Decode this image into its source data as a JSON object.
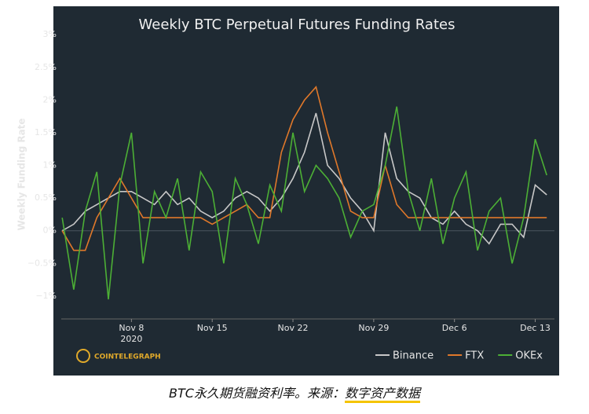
{
  "chart_data": {
    "type": "line",
    "title": "Weekly BTC Perpetual Futures Funding Rates",
    "y_label": "Weekly Funding Rate",
    "watermark": "COINTELEGRAPH",
    "x": [
      "2020-11-02",
      "2020-11-03",
      "2020-11-04",
      "2020-11-05",
      "2020-11-06",
      "2020-11-07",
      "2020-11-08",
      "2020-11-09",
      "2020-11-10",
      "2020-11-11",
      "2020-11-12",
      "2020-11-13",
      "2020-11-14",
      "2020-11-15",
      "2020-11-16",
      "2020-11-17",
      "2020-11-18",
      "2020-11-19",
      "2020-11-20",
      "2020-11-21",
      "2020-11-22",
      "2020-11-23",
      "2020-11-24",
      "2020-11-25",
      "2020-11-26",
      "2020-11-27",
      "2020-11-28",
      "2020-11-29",
      "2020-11-30",
      "2020-12-01",
      "2020-12-02",
      "2020-12-03",
      "2020-12-04",
      "2020-12-05",
      "2020-12-06",
      "2020-12-07",
      "2020-12-08",
      "2020-12-09",
      "2020-12-10",
      "2020-12-11",
      "2020-12-12",
      "2020-12-13",
      "2020-12-14"
    ],
    "series": [
      {
        "name": "Binance",
        "color": "#c8c8c8",
        "values": [
          0,
          0.1,
          0.3,
          0.4,
          0.5,
          0.6,
          0.6,
          0.5,
          0.4,
          0.6,
          0.4,
          0.5,
          0.3,
          0.2,
          0.3,
          0.5,
          0.6,
          0.5,
          0.3,
          0.5,
          0.8,
          1.2,
          1.8,
          1.0,
          0.8,
          0.5,
          0.3,
          0.0,
          1.5,
          0.8,
          0.6,
          0.5,
          0.2,
          0.1,
          0.3,
          0.1,
          0.0,
          -0.2,
          0.1,
          0.1,
          -0.1,
          0.7,
          0.55
        ]
      },
      {
        "name": "FTX",
        "color": "#e0782a",
        "values": [
          0,
          -0.3,
          -0.3,
          0.2,
          0.5,
          0.8,
          0.5,
          0.2,
          0.2,
          0.2,
          0.2,
          0.2,
          0.2,
          0.1,
          0.2,
          0.3,
          0.4,
          0.2,
          0.2,
          1.2,
          1.7,
          2.0,
          2.2,
          1.5,
          0.9,
          0.3,
          0.2,
          0.2,
          1.0,
          0.4,
          0.2,
          0.2,
          0.2,
          0.2,
          0.2,
          0.2,
          0.2,
          0.2,
          0.2,
          0.2,
          0.2,
          0.2,
          0.2
        ]
      },
      {
        "name": "OKEx",
        "color": "#4caf35",
        "values": [
          0.2,
          -0.9,
          0.3,
          0.9,
          -1.05,
          0.7,
          1.5,
          -0.5,
          0.6,
          0.2,
          0.8,
          -0.3,
          0.9,
          0.6,
          -0.5,
          0.8,
          0.4,
          -0.2,
          0.7,
          0.3,
          1.5,
          0.6,
          1.0,
          0.8,
          0.5,
          -0.1,
          0.3,
          0.4,
          1.0,
          1.9,
          0.6,
          0.0,
          0.8,
          -0.2,
          0.5,
          0.9,
          -0.3,
          0.3,
          0.5,
          -0.5,
          0.2,
          1.4,
          0.85
        ]
      }
    ],
    "xlim": [
      "2020-11-01T22:00",
      "2020-12-14T16:00"
    ],
    "xticks": [
      {
        "value": "2020-11-08",
        "label": "Nov 8\n2020"
      },
      {
        "value": "2020-11-15",
        "label": "Nov 15"
      },
      {
        "value": "2020-11-22",
        "label": "Nov 22"
      },
      {
        "value": "2020-11-29",
        "label": "Nov 29"
      },
      {
        "value": "2020-12-06",
        "label": "Dec 6"
      },
      {
        "value": "2020-12-13",
        "label": "Dec 13"
      }
    ],
    "ylim": [
      -1.35,
      3.05
    ],
    "yticks": [
      {
        "value": -1,
        "label": "−1%"
      },
      {
        "value": -0.5,
        "label": "−0.5%"
      },
      {
        "value": 0,
        "label": "0%"
      },
      {
        "value": 0.5,
        "label": "0.5%"
      },
      {
        "value": 1,
        "label": "1%"
      },
      {
        "value": 1.5,
        "label": "1.5%"
      },
      {
        "value": 2,
        "label": "2%"
      },
      {
        "value": 2.5,
        "label": "2.5%"
      },
      {
        "value": 3,
        "label": "3%"
      }
    ],
    "zero_line": true,
    "legend": "lower-right"
  },
  "caption": {
    "text": "BTC永久期货融资利率。来源：",
    "source": "数字资产数据"
  }
}
